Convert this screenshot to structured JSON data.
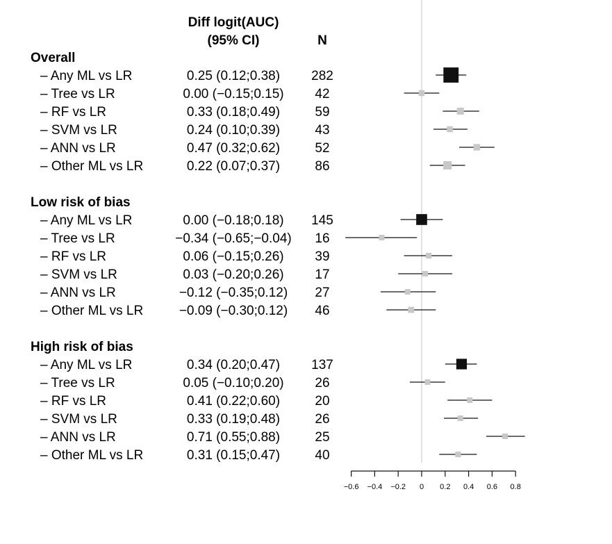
{
  "header": {
    "estimate_line1": "Diff logit(AUC)",
    "estimate_line2": "(95% CI)",
    "n": "N"
  },
  "chart_data": {
    "type": "forest",
    "x_ticks": [
      -0.6,
      -0.4,
      -0.2,
      0,
      0.2,
      0.4,
      0.6,
      0.8
    ],
    "x_tick_labels": [
      "−0.6",
      "−0.4",
      "−0.2",
      "0",
      "0.2",
      "0.4",
      "0.6",
      "0.8"
    ],
    "reference_line": 0,
    "colors": {
      "summary": "#111111",
      "subgroup": "#c8c8c8",
      "ci": "#111111",
      "reference": "#d9d9d9"
    },
    "groups": [
      {
        "title": "Overall",
        "rows": [
          {
            "label": "– Any ML vs LR",
            "est_text": "0.25 (0.12;0.38)",
            "n": "282",
            "est": 0.25,
            "lo": 0.12,
            "hi": 0.38,
            "summary": true
          },
          {
            "label": "– Tree vs LR",
            "est_text": "0.00 (−0.15;0.15)",
            "n": "42",
            "est": 0.0,
            "lo": -0.15,
            "hi": 0.15,
            "summary": false
          },
          {
            "label": "– RF vs LR",
            "est_text": "0.33 (0.18;0.49)",
            "n": "59",
            "est": 0.33,
            "lo": 0.18,
            "hi": 0.49,
            "summary": false
          },
          {
            "label": "– SVM vs LR",
            "est_text": "0.24 (0.10;0.39)",
            "n": "43",
            "est": 0.24,
            "lo": 0.1,
            "hi": 0.39,
            "summary": false
          },
          {
            "label": "– ANN vs LR",
            "est_text": "0.47 (0.32;0.62)",
            "n": "52",
            "est": 0.47,
            "lo": 0.32,
            "hi": 0.62,
            "summary": false
          },
          {
            "label": "– Other ML vs LR",
            "est_text": "0.22 (0.07;0.37)",
            "n": "86",
            "est": 0.22,
            "lo": 0.07,
            "hi": 0.37,
            "summary": false
          }
        ]
      },
      {
        "title": "Low risk of bias",
        "rows": [
          {
            "label": "– Any ML vs LR",
            "est_text": "0.00 (−0.18;0.18)",
            "n": "145",
            "est": 0.0,
            "lo": -0.18,
            "hi": 0.18,
            "summary": true
          },
          {
            "label": "– Tree vs LR",
            "est_text": "−0.34 (−0.65;−0.04)",
            "n": "16",
            "est": -0.34,
            "lo": -0.65,
            "hi": -0.04,
            "summary": false
          },
          {
            "label": "– RF vs LR",
            "est_text": "0.06 (−0.15;0.26)",
            "n": "39",
            "est": 0.06,
            "lo": -0.15,
            "hi": 0.26,
            "summary": false
          },
          {
            "label": "– SVM vs LR",
            "est_text": "0.03 (−0.20;0.26)",
            "n": "17",
            "est": 0.03,
            "lo": -0.2,
            "hi": 0.26,
            "summary": false
          },
          {
            "label": "– ANN vs LR",
            "est_text": "−0.12 (−0.35;0.12)",
            "n": "27",
            "est": -0.12,
            "lo": -0.35,
            "hi": 0.12,
            "summary": false
          },
          {
            "label": "– Other ML vs LR",
            "est_text": "−0.09 (−0.30;0.12)",
            "n": "46",
            "est": -0.09,
            "lo": -0.3,
            "hi": 0.12,
            "summary": false
          }
        ]
      },
      {
        "title": "High risk of bias",
        "rows": [
          {
            "label": "– Any ML vs LR",
            "est_text": "0.34 (0.20;0.47)",
            "n": "137",
            "est": 0.34,
            "lo": 0.2,
            "hi": 0.47,
            "summary": true
          },
          {
            "label": "– Tree vs LR",
            "est_text": "0.05 (−0.10;0.20)",
            "n": "26",
            "est": 0.05,
            "lo": -0.1,
            "hi": 0.2,
            "summary": false
          },
          {
            "label": "– RF vs LR",
            "est_text": "0.41 (0.22;0.60)",
            "n": "20",
            "est": 0.41,
            "lo": 0.22,
            "hi": 0.6,
            "summary": false
          },
          {
            "label": "– SVM vs LR",
            "est_text": "0.33 (0.19;0.48)",
            "n": "26",
            "est": 0.33,
            "lo": 0.19,
            "hi": 0.48,
            "summary": false
          },
          {
            "label": "– ANN vs LR",
            "est_text": "0.71 (0.55;0.88)",
            "n": "25",
            "est": 0.71,
            "lo": 0.55,
            "hi": 0.88,
            "summary": false
          },
          {
            "label": "– Other ML vs LR",
            "est_text": "0.31 (0.15;0.47)",
            "n": "40",
            "est": 0.31,
            "lo": 0.15,
            "hi": 0.47,
            "summary": false
          }
        ]
      }
    ]
  }
}
